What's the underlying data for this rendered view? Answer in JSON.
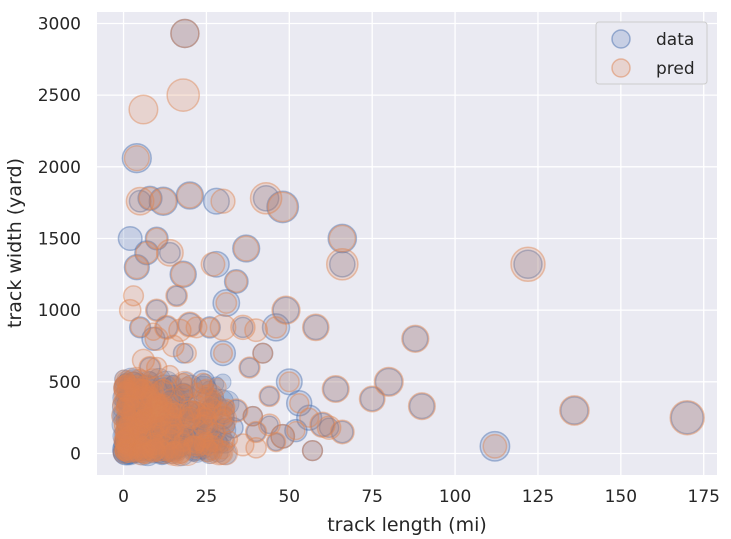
{
  "chart_data": {
    "type": "scatter",
    "xlabel": "track length (mi)",
    "ylabel": "track width (yard)",
    "xlim": [
      -8,
      179
    ],
    "ylim": [
      -150,
      3080
    ],
    "xticks": [
      0,
      25,
      50,
      75,
      100,
      125,
      150,
      175
    ],
    "yticks": [
      0,
      500,
      1000,
      1500,
      2000,
      2500,
      3000
    ],
    "grid": true,
    "legend": {
      "position": "top-right",
      "entries": [
        "data",
        "pred"
      ]
    },
    "colors": {
      "data": "#4c72b0",
      "pred": "#dd8452",
      "background": "#eaeaf2",
      "grid": "#ffffff"
    },
    "series": [
      {
        "name": "data",
        "points": [
          [
            18.5,
            2930
          ],
          [
            4,
            2060
          ],
          [
            2,
            1500
          ],
          [
            8,
            1780
          ],
          [
            5,
            1760
          ],
          [
            12,
            1760
          ],
          [
            20,
            1800
          ],
          [
            28,
            1760
          ],
          [
            43,
            1780
          ],
          [
            48,
            1720
          ],
          [
            37,
            1430
          ],
          [
            66,
            1500
          ],
          [
            66,
            1320
          ],
          [
            4,
            1300
          ],
          [
            7,
            1400
          ],
          [
            10,
            1500
          ],
          [
            14,
            1400
          ],
          [
            18,
            1250
          ],
          [
            28,
            1320
          ],
          [
            34,
            1200
          ],
          [
            122,
            1320
          ],
          [
            31,
            1050
          ],
          [
            49,
            1000
          ],
          [
            58,
            880
          ],
          [
            88,
            800
          ],
          [
            50,
            500
          ],
          [
            80,
            500
          ],
          [
            90,
            330
          ],
          [
            136,
            300
          ],
          [
            112,
            50
          ],
          [
            170,
            250
          ],
          [
            66,
            150
          ],
          [
            44,
            400
          ],
          [
            53,
            350
          ],
          [
            64,
            450
          ],
          [
            75,
            380
          ],
          [
            38,
            600
          ],
          [
            30,
            700
          ],
          [
            20,
            900
          ],
          [
            10,
            1000
          ],
          [
            16,
            1100
          ],
          [
            24,
            500
          ],
          [
            8,
            600
          ],
          [
            12,
            450
          ],
          [
            4,
            200
          ],
          [
            2,
            100
          ],
          [
            6,
            300
          ],
          [
            15,
            250
          ],
          [
            22,
            150
          ],
          [
            28,
            80
          ],
          [
            34,
            300
          ],
          [
            40,
            150
          ],
          [
            46,
            80
          ],
          [
            56,
            250
          ],
          [
            60,
            200
          ],
          [
            1,
            400
          ],
          [
            3,
            50
          ],
          [
            9,
            800
          ],
          [
            13,
            880
          ],
          [
            26,
            880
          ],
          [
            36,
            880
          ],
          [
            46,
            880
          ],
          [
            5,
            880
          ],
          [
            18,
            700
          ],
          [
            42,
            700
          ],
          [
            2,
            30
          ],
          [
            1,
            10
          ],
          [
            4,
            120
          ],
          [
            7,
            40
          ],
          [
            11,
            20
          ],
          [
            3,
            500
          ],
          [
            6,
            450
          ],
          [
            10,
            350
          ],
          [
            14,
            300
          ],
          [
            18,
            420
          ],
          [
            20,
            300
          ],
          [
            26,
            320
          ],
          [
            30,
            250
          ],
          [
            33,
            180
          ],
          [
            39,
            260
          ],
          [
            44,
            200
          ],
          [
            48,
            120
          ],
          [
            52,
            160
          ],
          [
            57,
            20
          ],
          [
            62,
            180
          ],
          [
            20,
            60
          ],
          [
            24,
            30
          ],
          [
            16,
            80
          ]
        ]
      },
      {
        "name": "pred",
        "points": [
          [
            18.5,
            2930
          ],
          [
            18,
            2500
          ],
          [
            6,
            2400
          ],
          [
            4,
            2060
          ],
          [
            8,
            1780
          ],
          [
            5,
            1760
          ],
          [
            12,
            1760
          ],
          [
            20,
            1800
          ],
          [
            30,
            1760
          ],
          [
            43,
            1780
          ],
          [
            48,
            1720
          ],
          [
            37,
            1430
          ],
          [
            66,
            1500
          ],
          [
            66,
            1320
          ],
          [
            4,
            1300
          ],
          [
            7,
            1400
          ],
          [
            10,
            1500
          ],
          [
            14,
            1400
          ],
          [
            18,
            1250
          ],
          [
            27,
            1320
          ],
          [
            34,
            1200
          ],
          [
            122,
            1320
          ],
          [
            2,
            1000
          ],
          [
            3,
            1100
          ],
          [
            31,
            1050
          ],
          [
            49,
            1000
          ],
          [
            58,
            880
          ],
          [
            88,
            800
          ],
          [
            50,
            500
          ],
          [
            80,
            500
          ],
          [
            90,
            330
          ],
          [
            136,
            300
          ],
          [
            112,
            50
          ],
          [
            170,
            250
          ],
          [
            66,
            150
          ],
          [
            44,
            400
          ],
          [
            53,
            350
          ],
          [
            64,
            450
          ],
          [
            75,
            380
          ],
          [
            38,
            600
          ],
          [
            30,
            700
          ],
          [
            20,
            900
          ],
          [
            10,
            1000
          ],
          [
            16,
            1100
          ],
          [
            24,
            500
          ],
          [
            8,
            600
          ],
          [
            12,
            450
          ],
          [
            5,
            880
          ],
          [
            9,
            850
          ],
          [
            13,
            880
          ],
          [
            17,
            860
          ],
          [
            22,
            880
          ],
          [
            26,
            880
          ],
          [
            30,
            880
          ],
          [
            36,
            880
          ],
          [
            40,
            860
          ],
          [
            46,
            880
          ],
          [
            10,
            800
          ],
          [
            15,
            750
          ],
          [
            19,
            700
          ],
          [
            42,
            700
          ],
          [
            6,
            650
          ],
          [
            10,
            600
          ],
          [
            14,
            550
          ],
          [
            18,
            500
          ],
          [
            4,
            450
          ],
          [
            8,
            400
          ],
          [
            12,
            350
          ],
          [
            16,
            300
          ],
          [
            20,
            250
          ],
          [
            24,
            200
          ],
          [
            28,
            150
          ],
          [
            32,
            100
          ],
          [
            36,
            60
          ],
          [
            40,
            40
          ],
          [
            6,
            200
          ],
          [
            10,
            150
          ],
          [
            14,
            100
          ],
          [
            18,
            80
          ],
          [
            22,
            60
          ],
          [
            26,
            40
          ],
          [
            3,
            300
          ],
          [
            7,
            250
          ],
          [
            11,
            200
          ],
          [
            15,
            150
          ],
          [
            34,
            300
          ],
          [
            40,
            150
          ],
          [
            46,
            80
          ],
          [
            56,
            250
          ],
          [
            60,
            200
          ],
          [
            62,
            180
          ],
          [
            57,
            20
          ],
          [
            52,
            160
          ],
          [
            48,
            120
          ],
          [
            44,
            200
          ],
          [
            39,
            260
          ],
          [
            30,
            250
          ],
          [
            26,
            320
          ],
          [
            20,
            300
          ],
          [
            18,
            420
          ],
          [
            14,
            300
          ],
          [
            10,
            350
          ],
          [
            6,
            450
          ]
        ]
      }
    ]
  }
}
